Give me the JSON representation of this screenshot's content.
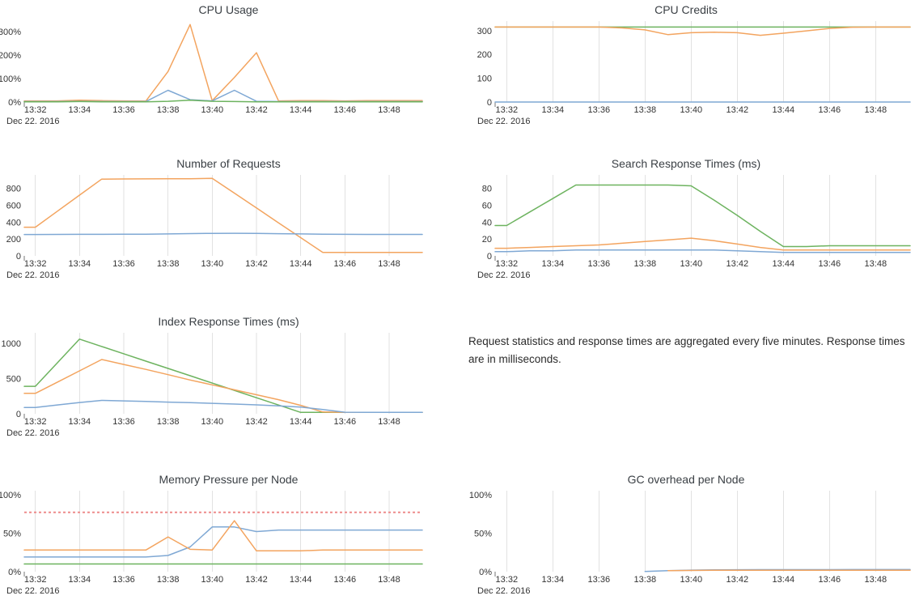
{
  "page": {
    "background": "#ffffff"
  },
  "palette": {
    "blue": "#7fa8d4",
    "orange": "#f3a45f",
    "green": "#6db35f",
    "threshold_red": "#ed8c8c",
    "grid_line": "#e2e2e2",
    "tick_text": "#333333",
    "title_text": "#3b4045",
    "axis_tick": "#777777"
  },
  "x_axis": {
    "tick_labels": [
      "13:32",
      "13:34",
      "13:36",
      "13:38",
      "13:40",
      "13:42",
      "13:44",
      "13:46",
      "13:48"
    ],
    "date_label": "Dec 22. 2016"
  },
  "note": {
    "text": "Request statistics and response times are aggregated every five minutes. Response times are in milliseconds."
  },
  "chart_data": [
    {
      "id": "cpu-usage",
      "type": "line",
      "title": "CPU Usage",
      "ylim": [
        0,
        345
      ],
      "grid": false,
      "y_ticks": [
        {
          "value": 0,
          "label": "0%"
        },
        {
          "value": 100,
          "label": "100%"
        },
        {
          "value": 200,
          "label": "200%"
        },
        {
          "value": 300,
          "label": "300%"
        }
      ],
      "series": [
        {
          "name": "orange",
          "color": "#f3a45f",
          "values": [
            5,
            5,
            8,
            6,
            5,
            4,
            130,
            330,
            6,
            105,
            210,
            5,
            6,
            6,
            5,
            6,
            6,
            6
          ]
        },
        {
          "name": "blue",
          "color": "#7fa8d4",
          "values": [
            2,
            2,
            3,
            2,
            2,
            2,
            50,
            10,
            5,
            50,
            3,
            2,
            2,
            2,
            2,
            2,
            2,
            2
          ]
        },
        {
          "name": "green",
          "color": "#6db35f",
          "values": [
            1,
            1,
            2,
            1,
            1,
            1,
            3,
            8,
            3,
            2,
            1,
            1,
            1,
            1,
            1,
            1,
            1,
            1
          ]
        }
      ]
    },
    {
      "id": "cpu-credits",
      "type": "line",
      "title": "CPU Credits",
      "ylim": [
        0,
        340
      ],
      "grid": true,
      "y_ticks": [
        {
          "value": 0,
          "label": "0"
        },
        {
          "value": 100,
          "label": "100"
        },
        {
          "value": 200,
          "label": "200"
        },
        {
          "value": 300,
          "label": "300"
        }
      ],
      "series": [
        {
          "name": "green",
          "color": "#6db35f",
          "values": [
            315,
            315,
            315,
            315,
            315,
            315,
            315,
            315,
            315,
            315,
            315,
            315,
            315,
            315,
            315,
            315,
            315,
            315
          ]
        },
        {
          "name": "orange",
          "color": "#f3a45f",
          "values": [
            315,
            315,
            315,
            315,
            315,
            311,
            303,
            283,
            291,
            293,
            291,
            280,
            289,
            299,
            309,
            314,
            315,
            315
          ]
        },
        {
          "name": "blue",
          "color": "#7fa8d4",
          "values": [
            0,
            0,
            0,
            0,
            0,
            0,
            0,
            0,
            0,
            0,
            0,
            0,
            0,
            0,
            0,
            0,
            0,
            0
          ]
        }
      ]
    },
    {
      "id": "number-of-requests",
      "type": "line",
      "title": "Number of Requests",
      "ylim": [
        0,
        960
      ],
      "grid": true,
      "y_ticks": [
        {
          "value": 0,
          "label": "0"
        },
        {
          "value": 200,
          "label": "200"
        },
        {
          "value": 400,
          "label": "400"
        },
        {
          "value": 600,
          "label": "600"
        },
        {
          "value": 800,
          "label": "800"
        }
      ],
      "series": [
        {
          "name": "orange",
          "color": "#f3a45f",
          "values": [
            340,
            530,
            720,
            910,
            912,
            913,
            914,
            915,
            920,
            744,
            568,
            392,
            216,
            40,
            40,
            40,
            40,
            40
          ]
        },
        {
          "name": "blue",
          "color": "#7fa8d4",
          "values": [
            253,
            254,
            255,
            255,
            256,
            257,
            260,
            264,
            267,
            268,
            266,
            263,
            260,
            257,
            255,
            254,
            254,
            254
          ]
        }
      ]
    },
    {
      "id": "search-response-times",
      "type": "line",
      "title": "Search Response Times (ms)",
      "ylim": [
        0,
        96
      ],
      "grid": true,
      "y_ticks": [
        {
          "value": 0,
          "label": "0"
        },
        {
          "value": 20,
          "label": "20"
        },
        {
          "value": 40,
          "label": "40"
        },
        {
          "value": 60,
          "label": "60"
        },
        {
          "value": 80,
          "label": "80"
        }
      ],
      "series": [
        {
          "name": "green",
          "color": "#6db35f",
          "values": [
            36,
            52,
            68,
            84,
            84,
            84,
            84,
            84,
            83,
            66,
            48,
            29,
            11,
            11,
            12,
            12,
            12,
            12
          ]
        },
        {
          "name": "orange",
          "color": "#f3a45f",
          "values": [
            9,
            10,
            11,
            12,
            13,
            15,
            17,
            19,
            21,
            18,
            14,
            10,
            7,
            7,
            7,
            7,
            7,
            7
          ]
        },
        {
          "name": "blue",
          "color": "#7fa8d4",
          "values": [
            5,
            6,
            6,
            7,
            7,
            7,
            7,
            7,
            7,
            7,
            6,
            5,
            4,
            4,
            4,
            4,
            4,
            4
          ]
        }
      ]
    },
    {
      "id": "index-response-times",
      "type": "line",
      "title": "Index Response Times (ms)",
      "ylim": [
        0,
        1150
      ],
      "grid": true,
      "y_ticks": [
        {
          "value": 0,
          "label": "0"
        },
        {
          "value": 500,
          "label": "500"
        },
        {
          "value": 1000,
          "label": "1000"
        }
      ],
      "series": [
        {
          "name": "green",
          "color": "#6db35f",
          "values": [
            390,
            725,
            1060,
            956,
            852,
            748,
            644,
            540,
            436,
            332,
            228,
            124,
            20,
            20,
            20,
            20,
            20,
            20
          ]
        },
        {
          "name": "orange",
          "color": "#f3a45f",
          "values": [
            290,
            450,
            610,
            770,
            700,
            630,
            555,
            480,
            410,
            340,
            270,
            200,
            120,
            25,
            20,
            20,
            20,
            20
          ]
        },
        {
          "name": "blue",
          "color": "#7fa8d4",
          "values": [
            90,
            125,
            160,
            190,
            183,
            175,
            166,
            157,
            148,
            138,
            126,
            112,
            95,
            60,
            22,
            20,
            20,
            20
          ]
        }
      ]
    },
    {
      "id": "memory-pressure-per-node",
      "type": "line",
      "title": "Memory Pressure per Node",
      "ylim": [
        0,
        105
      ],
      "grid": true,
      "y_ticks": [
        {
          "value": 0,
          "label": "0%"
        },
        {
          "value": 50,
          "label": "50%"
        },
        {
          "value": 100,
          "label": "100%"
        }
      ],
      "threshold": {
        "value": 77,
        "color": "#ed8c8c",
        "style": "dotted"
      },
      "series": [
        {
          "name": "blue",
          "color": "#7fa8d4",
          "values": [
            19,
            19,
            19,
            19,
            19,
            19,
            21,
            32,
            58,
            58,
            52,
            54,
            54,
            54,
            54,
            54,
            54,
            54
          ]
        },
        {
          "name": "orange",
          "color": "#f3a45f",
          "values": [
            28,
            28,
            28,
            28,
            28,
            28,
            45,
            29,
            28,
            66,
            27,
            27,
            27,
            28,
            28,
            28,
            28,
            28
          ]
        },
        {
          "name": "green",
          "color": "#6db35f",
          "values": [
            10,
            10,
            10,
            10,
            10,
            10,
            10,
            10,
            10,
            10,
            10,
            10,
            10,
            10,
            10,
            10,
            10,
            10
          ]
        }
      ]
    },
    {
      "id": "gc-overhead-per-node",
      "type": "line",
      "title": "GC overhead per Node",
      "ylim": [
        0,
        105
      ],
      "grid": true,
      "y_ticks": [
        {
          "value": 0,
          "label": "0%"
        },
        {
          "value": 50,
          "label": "50%"
        },
        {
          "value": 100,
          "label": "100%"
        }
      ],
      "series": [
        {
          "name": "blue",
          "color": "#7fa8d4",
          "values": [
            null,
            null,
            null,
            null,
            null,
            null,
            0.3,
            1.3,
            2.0,
            2.3,
            2.5,
            2.6,
            2.6,
            2.6,
            2.6,
            2.7,
            2.7,
            2.7
          ]
        },
        {
          "name": "orange",
          "color": "#f3a45f",
          "values": [
            null,
            null,
            null,
            null,
            null,
            null,
            null,
            1.4,
            1.6,
            1.8,
            1.9,
            1.9,
            1.9,
            1.9,
            1.9,
            1.9,
            1.9,
            1.9
          ]
        }
      ]
    }
  ]
}
